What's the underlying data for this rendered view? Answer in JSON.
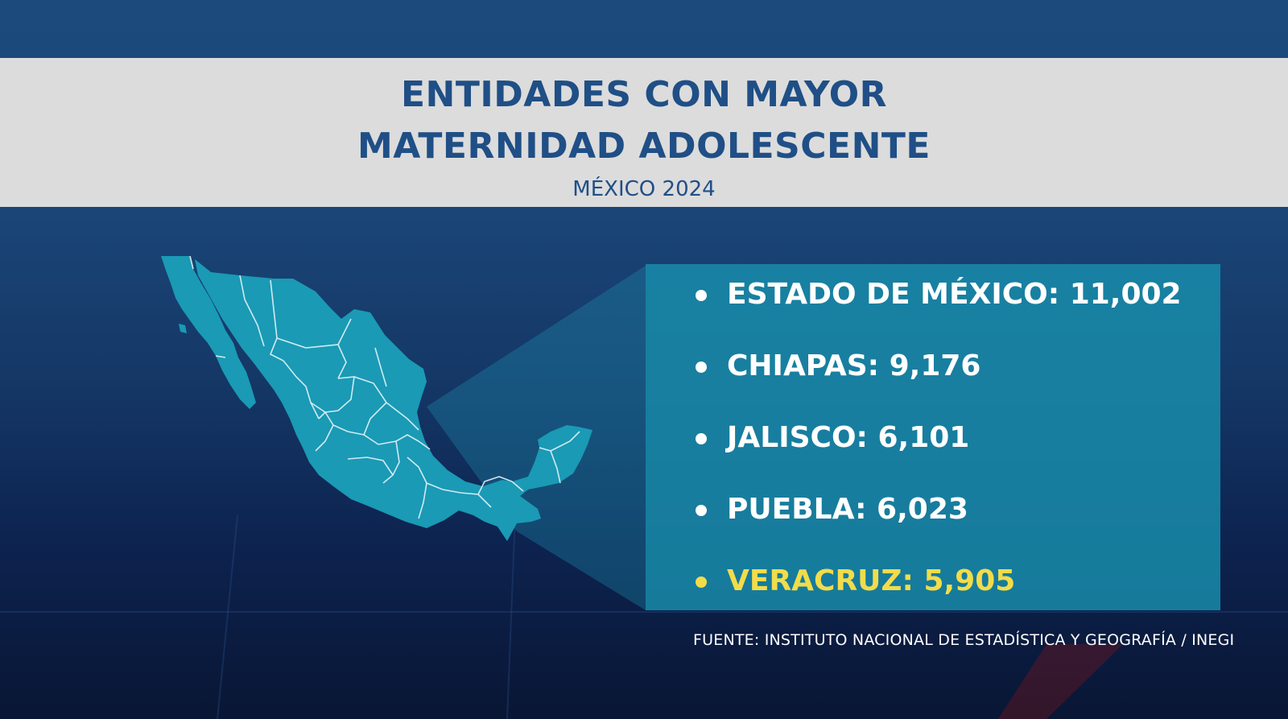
{
  "header": {
    "title_line1": "ENTIDADES CON MAYOR",
    "title_line2": "MATERNIDAD ADOLESCENTE",
    "subtitle": "MÉXICO 2024"
  },
  "colors": {
    "background": "#1a4576",
    "title_band": "#dcdcdc",
    "title_text": "#1f4f86",
    "map_fill": "#1a9ab5",
    "panel": "#198caa",
    "highlight": "#f2dc4a"
  },
  "entities": [
    {
      "label": "ESTADO DE MÉXICO: 11,002",
      "state": "Estado de México",
      "value": 11002,
      "highlight": false
    },
    {
      "label": "CHIAPAS: 9,176",
      "state": "Chiapas",
      "value": 9176,
      "highlight": false
    },
    {
      "label": "JALISCO: 6,101",
      "state": "Jalisco",
      "value": 6101,
      "highlight": false
    },
    {
      "label": "PUEBLA: 6,023",
      "state": "Puebla",
      "value": 6023,
      "highlight": false
    },
    {
      "label": "VERACRUZ: 5,905",
      "state": "Veracruz",
      "value": 5905,
      "highlight": true
    }
  ],
  "source": "FUENTE: INSTITUTO NACIONAL DE ESTADÍSTICA Y GEOGRAFÍA / INEGI"
}
